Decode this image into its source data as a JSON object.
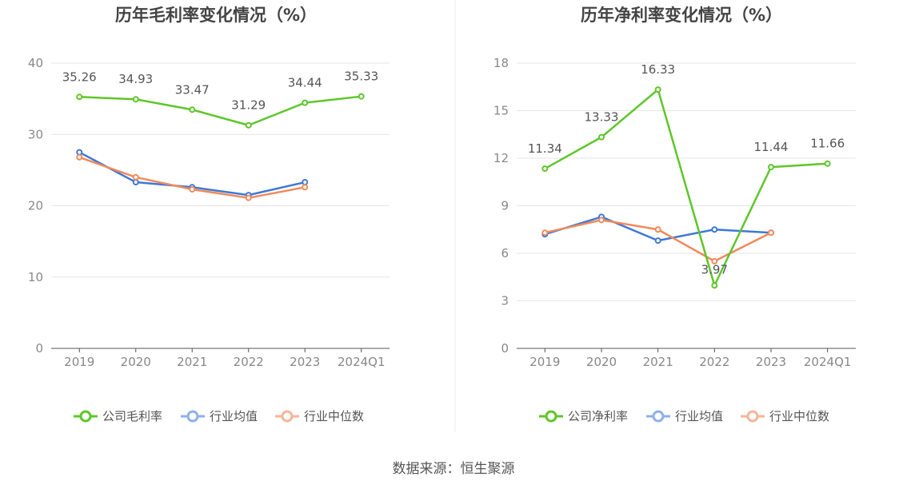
{
  "source": "数据来源：恒生聚源",
  "colors": {
    "company": "#5ec629",
    "avg": "#3e78d8",
    "median": "#f08a5a",
    "grid": "#e6e6e6",
    "axis": "#555555"
  },
  "chart_data": [
    {
      "type": "line",
      "title": "历年毛利率变化情况（%）",
      "categories": [
        "2019",
        "2020",
        "2021",
        "2022",
        "2023",
        "2024Q1"
      ],
      "ylim": [
        0,
        40
      ],
      "yticks": [
        0,
        10,
        20,
        30,
        40
      ],
      "grid": true,
      "legend": "bottom",
      "series": [
        {
          "name": "公司毛利率",
          "key": "company",
          "values": [
            35.26,
            34.93,
            33.47,
            31.29,
            34.44,
            35.33
          ],
          "labels": [
            "35.26",
            "34.93",
            "33.47",
            "31.29",
            "34.44",
            "35.33"
          ]
        },
        {
          "name": "行业均值",
          "key": "avg",
          "values": [
            27.5,
            23.3,
            22.6,
            21.5,
            23.3,
            null
          ]
        },
        {
          "name": "行业中位数",
          "key": "median",
          "values": [
            26.8,
            24.0,
            22.3,
            21.1,
            22.6,
            null
          ]
        }
      ]
    },
    {
      "type": "line",
      "title": "历年净利率变化情况（%）",
      "categories": [
        "2019",
        "2020",
        "2021",
        "2022",
        "2023",
        "2024Q1"
      ],
      "ylim": [
        0,
        18
      ],
      "yticks": [
        0,
        3,
        6,
        9,
        12,
        15,
        18
      ],
      "grid": true,
      "legend": "bottom",
      "series": [
        {
          "name": "公司净利率",
          "key": "company",
          "values": [
            11.34,
            13.33,
            16.33,
            3.97,
            11.44,
            11.66
          ],
          "labels": [
            "11.34",
            "13.33",
            "16.33",
            "3.97",
            "11.44",
            "11.66"
          ]
        },
        {
          "name": "行业均值",
          "key": "avg",
          "values": [
            7.2,
            8.3,
            6.8,
            7.5,
            7.3,
            null
          ]
        },
        {
          "name": "行业中位数",
          "key": "median",
          "values": [
            7.3,
            8.1,
            7.5,
            5.5,
            7.3,
            null
          ]
        }
      ]
    }
  ]
}
